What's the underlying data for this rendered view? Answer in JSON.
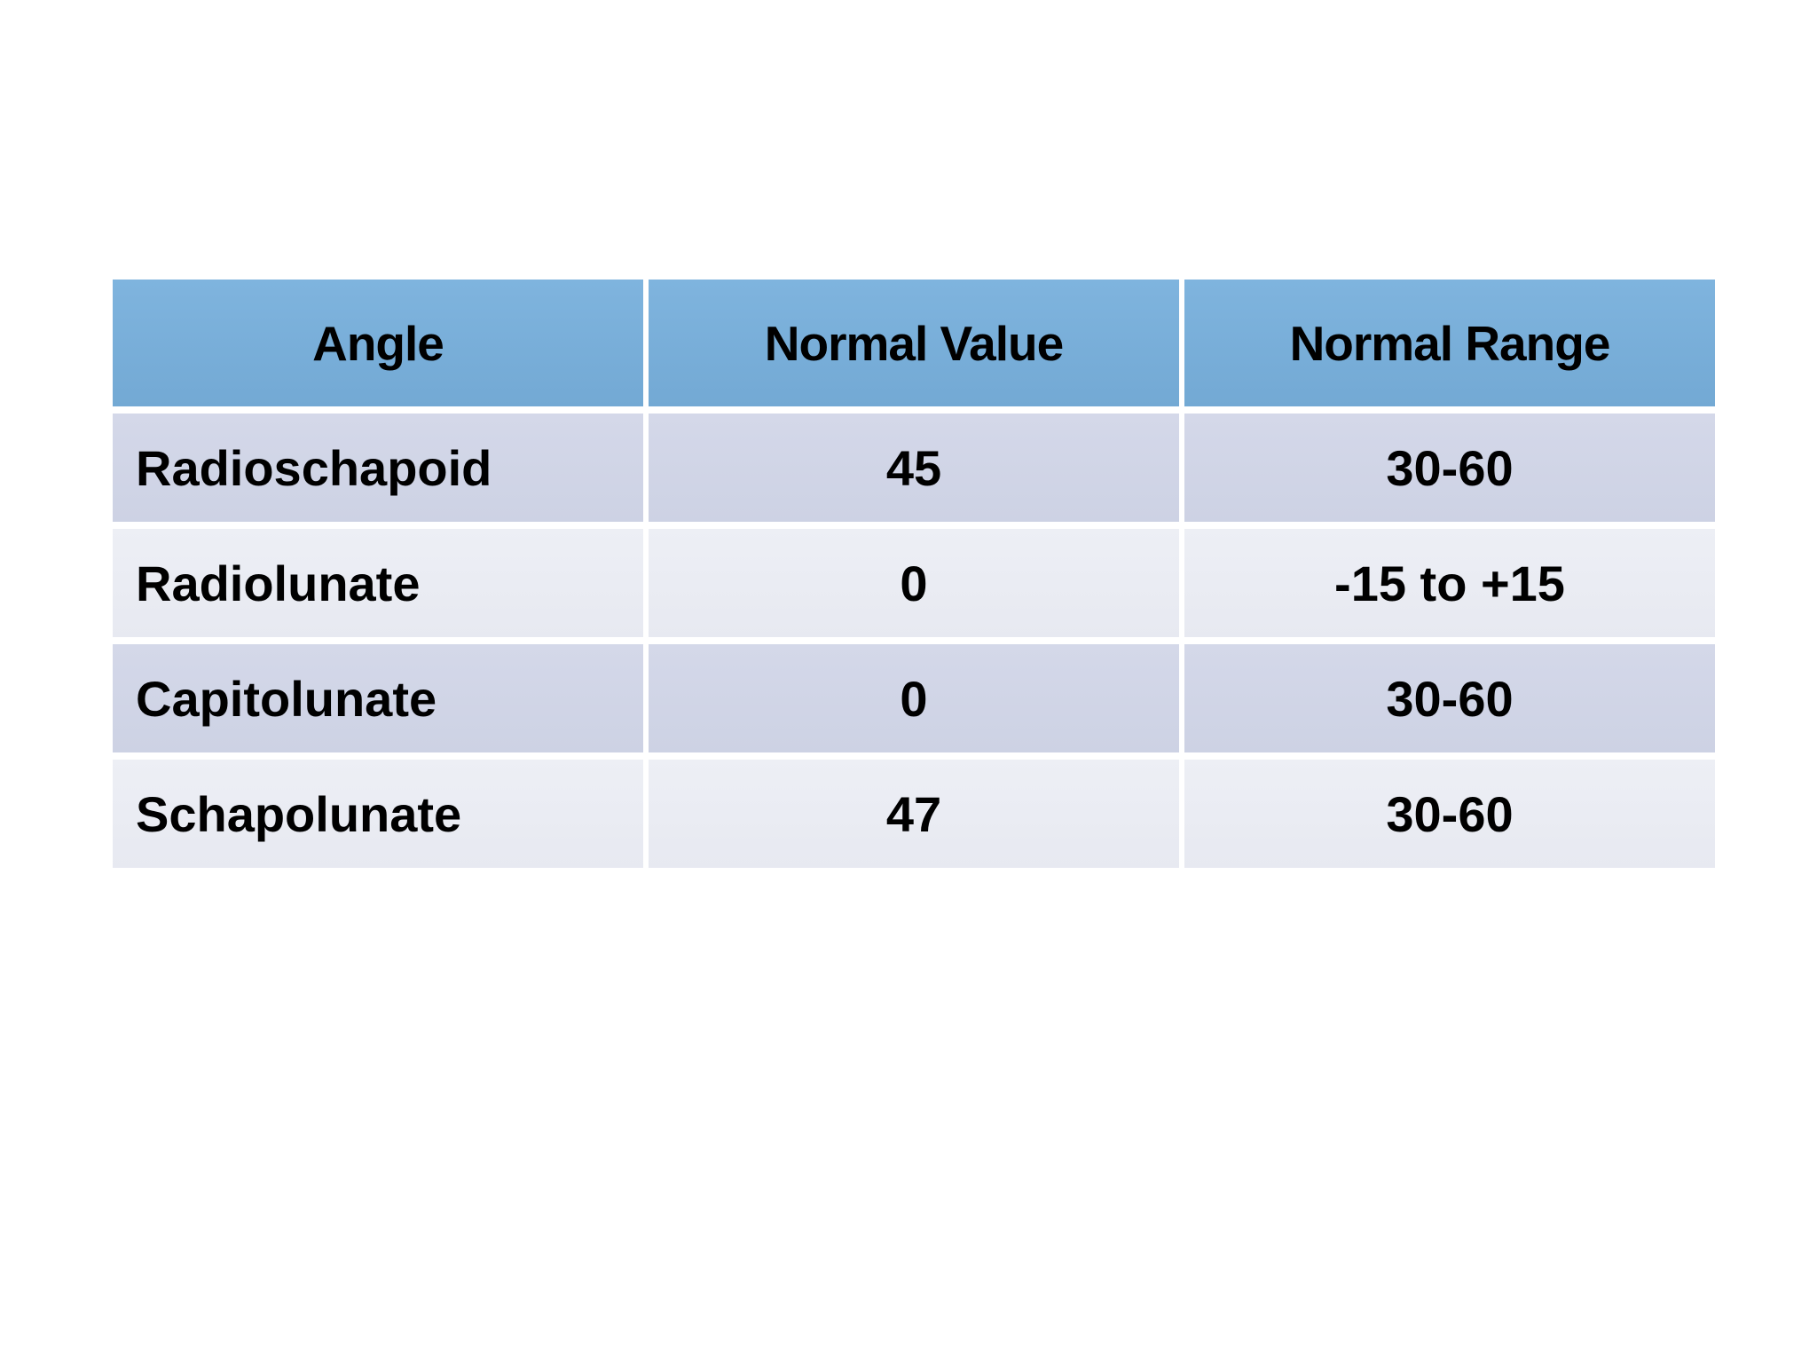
{
  "page": {
    "background_color": "#ffffff"
  },
  "table": {
    "columns": [
      "Angle",
      "Normal Value",
      "Normal Range"
    ],
    "rows": [
      {
        "angle": "Radioschapoid",
        "normal_value": "45",
        "normal_range": "30-60"
      },
      {
        "angle": "Radiolunate",
        "normal_value": "0",
        "normal_range": "-15 to +15"
      },
      {
        "angle": "Capitolunate",
        "normal_value": "0",
        "normal_range": "30-60"
      },
      {
        "angle": "Schapolunate",
        "normal_value": "47",
        "normal_range": "30-60"
      }
    ],
    "colors": {
      "header_bg": "#79aed9",
      "row_odd_bg": "#d0d4e6",
      "row_even_bg": "#e9ebf2",
      "divider": "#ffffff",
      "text": "#000000"
    }
  },
  "chart_data": {
    "type": "table",
    "title": "",
    "columns": [
      "Angle",
      "Normal Value",
      "Normal Range"
    ],
    "rows": [
      [
        "Radioschapoid",
        "45",
        "30-60"
      ],
      [
        "Radiolunate",
        "0",
        "-15 to +15"
      ],
      [
        "Capitolunate",
        "0",
        "30-60"
      ],
      [
        "Schapolunate",
        "47",
        "30-60"
      ]
    ]
  }
}
